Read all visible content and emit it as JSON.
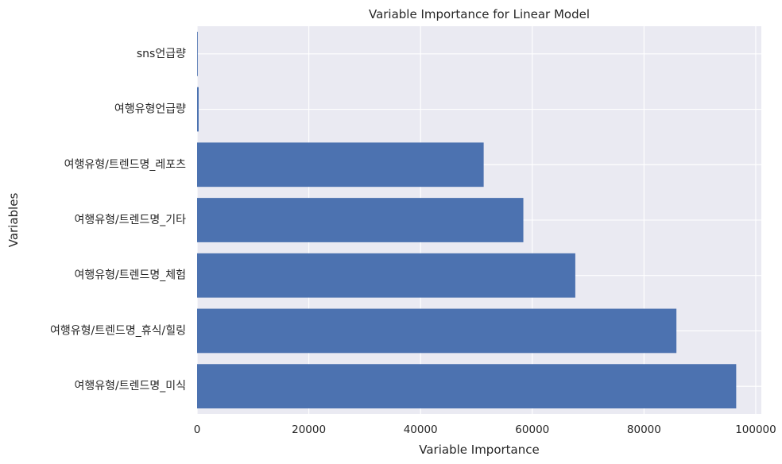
{
  "chart_data": {
    "type": "bar",
    "orientation": "horizontal",
    "title": "Variable Importance for Linear Model",
    "xlabel": "Variable Importance",
    "ylabel": "Variables",
    "categories": [
      "여행유형/트렌드명_미식",
      "여행유형/트렌드명_휴식/힐링",
      "여행유형/트렌드명_체험",
      "여행유형/트렌드명_기타",
      "여행유형/트렌드명_레포츠",
      "여행유형언급량",
      "sns언급량"
    ],
    "values": [
      96500,
      85800,
      67700,
      58400,
      51300,
      280,
      8
    ],
    "xlim": [
      0,
      101000
    ],
    "xticks": [
      0,
      20000,
      40000,
      60000,
      80000,
      100000
    ],
    "xtick_labels": [
      "0",
      "20000",
      "40000",
      "60000",
      "80000",
      "100000"
    ],
    "grid": true,
    "colors": {
      "bar": "#4c72b0",
      "background": "#eaeaf2",
      "grid": "#ffffff",
      "text": "#262626"
    }
  }
}
